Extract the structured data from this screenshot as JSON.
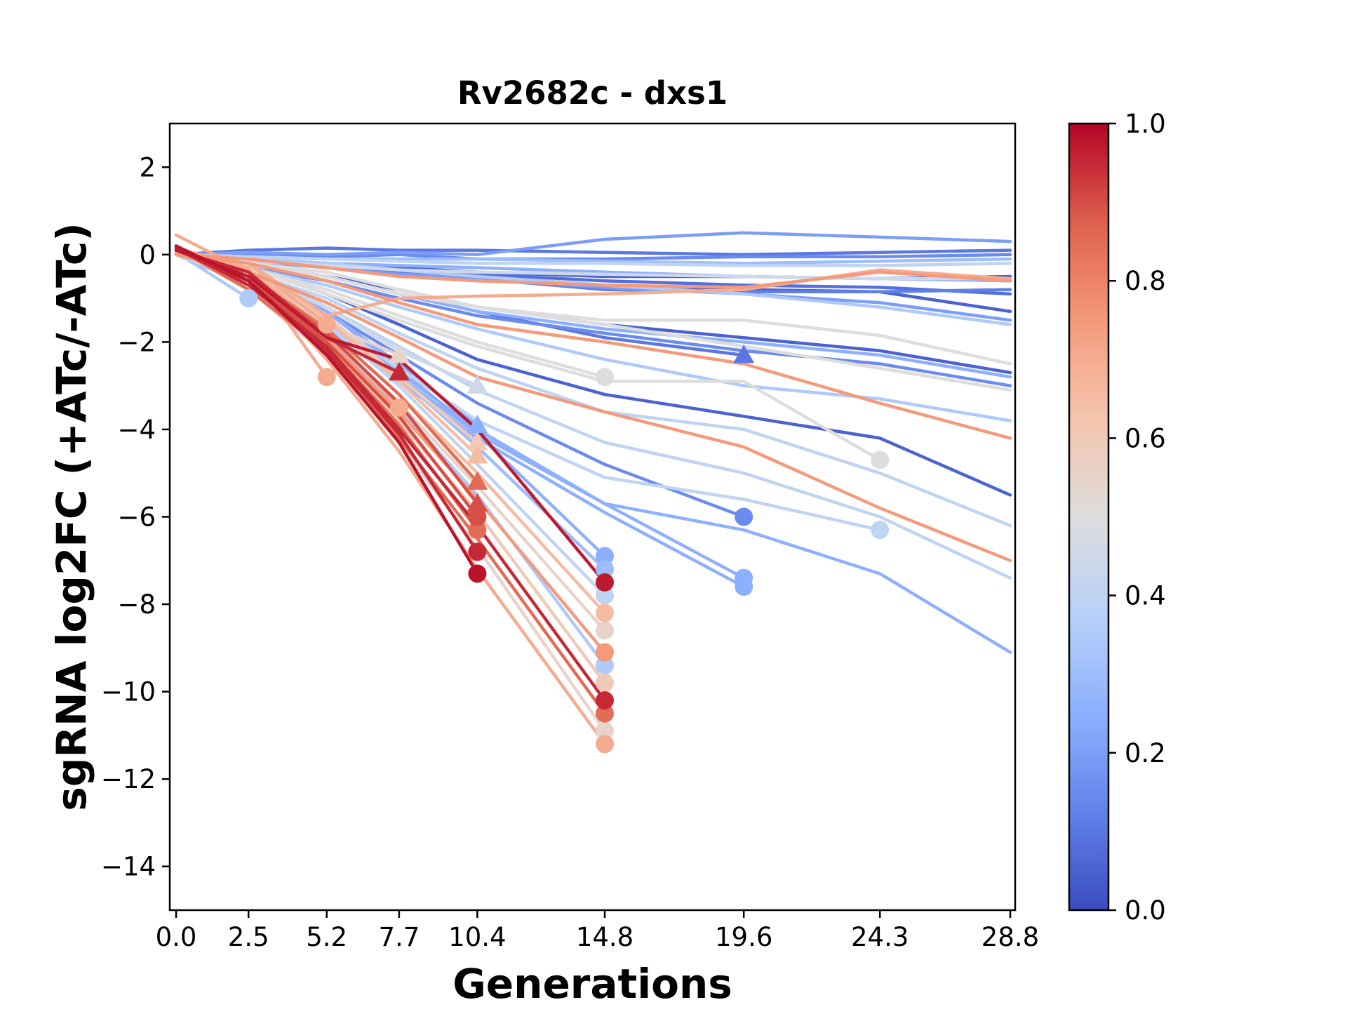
{
  "chart_data": {
    "type": "line",
    "title": "Rv2682c - dxs1",
    "xlabel": "Generations",
    "ylabel": "sgRNA log2FC (+ATc/-ATc)",
    "ylim": [
      -15,
      3
    ],
    "y_ticks": [
      2,
      0,
      -2,
      -4,
      -6,
      -8,
      -10,
      -12,
      -14
    ],
    "x_ticks": [
      0.0,
      2.5,
      5.2,
      7.7,
      10.4,
      14.8,
      19.6,
      24.3,
      28.8
    ],
    "x_tick_labels": [
      "0.0",
      "2.5",
      "5.2",
      "7.7",
      "10.4",
      "14.8",
      "19.6",
      "24.3",
      "28.8"
    ],
    "grid": false,
    "colorbar": {
      "colormap": "coolwarm",
      "range": [
        0.0,
        1.0
      ],
      "ticks": [
        "0.0",
        "0.2",
        "0.4",
        "0.6",
        "0.8",
        "1.0"
      ]
    },
    "series": [
      {
        "c": 0.1,
        "y": [
          0,
          0.1,
          0.15,
          0.1,
          0.1,
          0.05,
          0.0,
          0.05,
          0.1
        ]
      },
      {
        "c": 0.2,
        "y": [
          0,
          0.05,
          0.0,
          0.05,
          0.0,
          0.35,
          0.5,
          0.4,
          0.3
        ]
      },
      {
        "c": 0.15,
        "y": [
          0,
          0.0,
          -0.05,
          0.0,
          -0.1,
          -0.1,
          -0.05,
          -0.05,
          0.0
        ]
      },
      {
        "c": 0.3,
        "y": [
          0,
          -0.05,
          -0.1,
          -0.1,
          -0.1,
          -0.15,
          -0.2,
          -0.15,
          -0.1
        ]
      },
      {
        "c": 0.4,
        "y": [
          0,
          -0.05,
          -0.1,
          -0.15,
          -0.2,
          -0.2,
          -0.25,
          -0.25,
          -0.2
        ]
      },
      {
        "c": 0.05,
        "y": [
          0,
          -0.1,
          -0.2,
          -0.3,
          -0.4,
          -0.5,
          -0.5,
          -0.55,
          -0.5
        ]
      },
      {
        "c": 0.25,
        "y": [
          0,
          -0.1,
          -0.2,
          -0.25,
          -0.3,
          -0.4,
          -0.5,
          -0.55,
          -0.6
        ]
      },
      {
        "c": 0.45,
        "y": [
          0,
          -0.15,
          -0.25,
          -0.35,
          -0.4,
          -0.45,
          -0.5,
          -0.55,
          -0.55
        ]
      },
      {
        "c": 0.08,
        "y": [
          0,
          -0.15,
          -0.25,
          -0.35,
          -0.45,
          -0.6,
          -0.7,
          -0.75,
          -0.9
        ]
      },
      {
        "c": 0.12,
        "y": [
          0,
          -0.1,
          -0.2,
          -0.4,
          -0.55,
          -0.8,
          -0.85,
          -0.85,
          -0.8
        ]
      },
      {
        "c": 0.05,
        "y": [
          0,
          -0.1,
          -0.25,
          -0.4,
          -0.5,
          -0.7,
          -0.8,
          -0.85,
          -1.3
        ]
      },
      {
        "c": 0.2,
        "y": [
          0,
          -0.15,
          -0.3,
          -0.45,
          -0.55,
          -0.75,
          -0.9,
          -1.1,
          -1.5
        ]
      },
      {
        "c": 0.35,
        "y": [
          0,
          -0.1,
          -0.2,
          -0.35,
          -0.5,
          -0.7,
          -0.9,
          -1.2,
          -1.6
        ]
      },
      {
        "c": 0.75,
        "y": [
          0,
          -0.1,
          -0.3,
          -0.5,
          -0.6,
          -0.7,
          -0.75,
          -0.4,
          -0.6
        ]
      },
      {
        "c": 0.7,
        "y": [
          0,
          -0.2,
          -1.4,
          -1.0,
          -0.95,
          -0.9,
          -0.8,
          -0.35,
          -0.55
        ]
      },
      {
        "c": 0.5,
        "y": [
          0,
          -0.2,
          -0.5,
          -0.9,
          -1.2,
          -1.5,
          -1.5,
          -1.85,
          -2.5
        ]
      },
      {
        "c": 0.25,
        "y": [
          0,
          -0.2,
          -0.5,
          -0.9,
          -1.3,
          -1.7,
          -2.0,
          -2.3,
          -2.8
        ]
      },
      {
        "c": 0.05,
        "y": [
          0,
          -0.2,
          -0.5,
          -0.8,
          -1.2,
          -1.6,
          -1.9,
          -2.2,
          -2.7
        ]
      },
      {
        "c": 0.15,
        "y": [
          0,
          -0.3,
          -0.6,
          -1.0,
          -1.4,
          -1.8,
          -2.2,
          -2.5,
          -3.0
        ]
      },
      {
        "c": 0.5,
        "y": [
          0,
          -0.2,
          -0.4,
          -0.8,
          -1.2,
          -1.6,
          -2.1,
          -2.6,
          -3.1
        ]
      },
      {
        "c": 0.1,
        "y": [
          0,
          -0.2,
          -0.5,
          -0.9,
          -1.3,
          -1.9,
          -2.3,
          "",
          ""
        ],
        "end": "tri"
      },
      {
        "c": 0.35,
        "y": [
          0,
          -0.3,
          -0.7,
          -1.2,
          -1.7,
          -2.4,
          -3.0,
          -3.3,
          -3.8
        ]
      },
      {
        "c": 0.75,
        "y": [
          0,
          -0.2,
          -0.6,
          -1.1,
          -1.6,
          -2.0,
          -2.5,
          -3.4,
          -4.2
        ]
      },
      {
        "c": 0.5,
        "y": [
          0,
          -0.3,
          -0.8,
          -1.4,
          -2.0,
          -2.8,
          "",
          "",
          ""
        ],
        "end": "dot"
      },
      {
        "c": 0.05,
        "y": [
          0,
          -0.3,
          -0.9,
          -1.6,
          -2.4,
          -3.2,
          -3.7,
          -4.2,
          -5.5
        ]
      },
      {
        "c": 0.5,
        "y": [
          0,
          -0.3,
          -0.9,
          -1.5,
          -2.1,
          -2.9,
          -2.9,
          -4.7,
          ""
        ],
        "end": "dot"
      },
      {
        "c": 0.4,
        "y": [
          0,
          -0.4,
          -1.0,
          -1.8,
          -2.6,
          -3.6,
          -4.0,
          -5.0,
          -6.2
        ]
      },
      {
        "c": 0.75,
        "y": [
          0,
          -0.4,
          -1.1,
          -1.9,
          -2.8,
          -3.6,
          -4.4,
          -5.8,
          -7.0
        ]
      },
      {
        "c": 0.4,
        "y": [
          0,
          -0.5,
          -1.2,
          -2.1,
          -3.1,
          -4.3,
          -5.0,
          -6.0,
          -7.4
        ]
      },
      {
        "c": 0.15,
        "y": [
          0,
          -0.5,
          -1.3,
          -2.3,
          -3.4,
          -4.8,
          -6.0,
          "",
          ""
        ],
        "end": "dot"
      },
      {
        "c": 0.4,
        "y": [
          0,
          -0.6,
          -1.5,
          -2.6,
          -3.8,
          -5.1,
          -5.6,
          -6.3,
          ""
        ],
        "end": "dot"
      },
      {
        "c": 0.25,
        "y": [
          0,
          -0.6,
          -1.6,
          -2.8,
          -4.1,
          -5.7,
          -7.4,
          "",
          ""
        ],
        "end": "dot"
      },
      {
        "c": 0.25,
        "y": [
          0,
          -0.7,
          -1.7,
          -2.9,
          -4.2,
          -5.9,
          -7.6,
          "",
          ""
        ],
        "end": "dot"
      },
      {
        "c": 0.25,
        "y": [
          0,
          -0.6,
          -1.5,
          -2.7,
          -4.0,
          -5.7,
          -6.3,
          -7.3,
          -9.1
        ]
      },
      {
        "c": 0.35,
        "y": [
          0.05,
          -1.0,
          "",
          "",
          "",
          "",
          "",
          "",
          ""
        ],
        "end": "dot"
      },
      {
        "c": 0.7,
        "y": [
          0.05,
          -0.2,
          -1.6,
          "",
          "",
          "",
          "",
          "",
          ""
        ],
        "end": "dot"
      },
      {
        "c": 0.7,
        "y": [
          0.15,
          -0.3,
          -2.8,
          "",
          "",
          "",
          "",
          "",
          ""
        ],
        "end": "dot"
      },
      {
        "c": 0.7,
        "y": [
          0.1,
          -0.4,
          -1.7,
          -3.5,
          "",
          "",
          "",
          "",
          ""
        ],
        "end": "dot"
      },
      {
        "c": 0.55,
        "y": [
          0.1,
          -0.3,
          -1.6,
          -2.3,
          "",
          "",
          "",
          "",
          ""
        ],
        "end": "tri"
      },
      {
        "c": 0.95,
        "y": [
          0.1,
          -0.4,
          -1.9,
          -2.7,
          "",
          "",
          "",
          "",
          ""
        ],
        "end": "tri"
      },
      {
        "c": 0.45,
        "y": [
          0.05,
          -0.3,
          -1.2,
          -2.2,
          -3.0,
          "",
          "",
          "",
          ""
        ],
        "end": "tri"
      },
      {
        "c": 0.25,
        "y": [
          0.05,
          -0.4,
          -1.3,
          -2.5,
          -3.9,
          "",
          "",
          "",
          ""
        ],
        "end": "tri"
      },
      {
        "c": 0.6,
        "y": [
          0.05,
          -0.4,
          -1.4,
          -2.8,
          -4.3,
          "",
          "",
          "",
          ""
        ],
        "end": "tri"
      },
      {
        "c": 0.65,
        "y": [
          0.1,
          -0.4,
          -1.5,
          -2.9,
          -4.6,
          "",
          "",
          "",
          ""
        ],
        "end": "tri"
      },
      {
        "c": 0.85,
        "y": [
          0.1,
          -0.5,
          -1.7,
          -3.2,
          -5.2,
          "",
          "",
          "",
          ""
        ],
        "end": "tri"
      },
      {
        "c": 0.9,
        "y": [
          0.15,
          -0.5,
          -1.8,
          -3.4,
          -5.7,
          "",
          "",
          "",
          ""
        ],
        "end": "tri"
      },
      {
        "c": 0.9,
        "y": [
          0.15,
          -0.6,
          -2.0,
          -3.7,
          -6.0,
          "",
          "",
          "",
          ""
        ],
        "end": "dot"
      },
      {
        "c": 0.85,
        "y": [
          0.15,
          -0.6,
          -2.1,
          -3.9,
          -6.3,
          "",
          "",
          "",
          ""
        ],
        "end": "dot"
      },
      {
        "c": 0.95,
        "y": [
          0.15,
          -0.6,
          -2.2,
          -4.1,
          -6.8,
          "",
          "",
          "",
          ""
        ],
        "end": "dot"
      },
      {
        "c": 0.98,
        "y": [
          0.2,
          -0.6,
          -2.3,
          -4.3,
          -7.3,
          "",
          "",
          "",
          ""
        ],
        "end": "dot"
      },
      {
        "c": 0.25,
        "y": [
          0,
          -0.4,
          -1.3,
          -2.6,
          -4.1,
          -6.9,
          "",
          "",
          ""
        ],
        "end": "dot"
      },
      {
        "c": 0.3,
        "y": [
          0,
          -0.4,
          -1.4,
          -2.8,
          -4.4,
          -7.2,
          "",
          "",
          ""
        ],
        "end": "dot"
      },
      {
        "c": 0.97,
        "y": [
          0.1,
          -0.5,
          -1.9,
          -2.4,
          -4.0,
          -7.5,
          "",
          "",
          ""
        ],
        "end": "dot"
      },
      {
        "c": 0.4,
        "y": [
          0.05,
          -0.5,
          -1.6,
          -3.0,
          -4.8,
          -7.8,
          "",
          "",
          ""
        ],
        "end": "dot"
      },
      {
        "c": 0.65,
        "y": [
          0.05,
          -0.5,
          -1.7,
          -3.2,
          -5.0,
          -8.2,
          "",
          "",
          ""
        ],
        "end": "dot"
      },
      {
        "c": 0.55,
        "y": [
          0.05,
          -0.6,
          -1.8,
          -3.4,
          -5.3,
          -8.6,
          "",
          "",
          ""
        ],
        "end": "dot"
      },
      {
        "c": 0.75,
        "y": [
          0.1,
          -0.6,
          -1.9,
          -3.6,
          -5.6,
          -9.1,
          "",
          "",
          ""
        ],
        "end": "dot"
      },
      {
        "c": 0.35,
        "y": [
          0.05,
          -0.6,
          -1.8,
          -3.5,
          -5.5,
          -9.4,
          "",
          "",
          ""
        ],
        "end": "dot"
      },
      {
        "c": 0.6,
        "y": [
          0.1,
          -0.7,
          -2.0,
          -3.8,
          -5.9,
          -9.8,
          "",
          "",
          ""
        ],
        "end": "dot"
      },
      {
        "c": 0.95,
        "y": [
          0.15,
          -0.7,
          -2.1,
          -4.0,
          -6.2,
          -10.2,
          "",
          "",
          ""
        ],
        "end": "dot"
      },
      {
        "c": 0.85,
        "y": [
          0.15,
          -0.8,
          -2.2,
          -4.2,
          -6.5,
          -10.5,
          "",
          "",
          ""
        ],
        "end": "dot"
      },
      {
        "c": 0.55,
        "y": [
          0.1,
          -0.8,
          -2.3,
          -4.3,
          -6.7,
          -10.9,
          "",
          "",
          ""
        ],
        "end": "dot"
      },
      {
        "c": 0.7,
        "y": [
          0.45,
          -0.4,
          -2.4,
          -4.5,
          -7.2,
          -11.2,
          "",
          "",
          ""
        ],
        "end": "dot"
      }
    ]
  }
}
